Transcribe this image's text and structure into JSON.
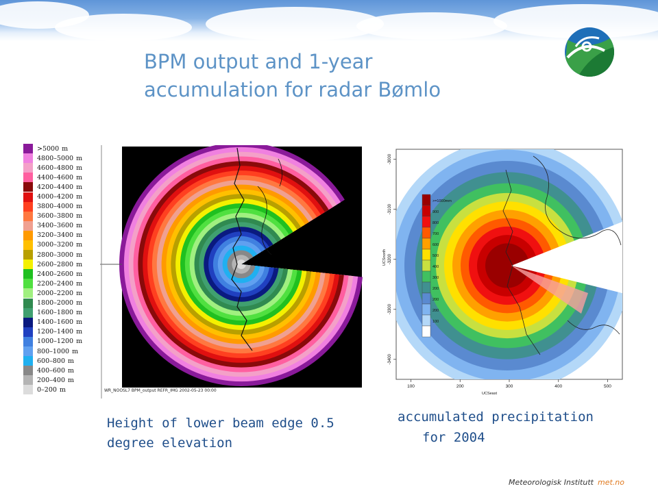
{
  "slide": {
    "title_line1": "BPM output and 1-year",
    "title_line2": "accumulation for radar Bømlo",
    "caption_left_line1": "Height of lower beam edge 0.5",
    "caption_left_line2": "degree elevation",
    "caption_right_line1": "accumulated precipitation",
    "caption_right_line2": "for 2004",
    "footer_org": "Meteorologisk Institutt",
    "footer_brand": "met.no"
  },
  "bpm_figure": {
    "image_caption": "WR_NOOSL7 BPM_output REFR_IMG 2002-05-23 00:00",
    "legend_unit": "m",
    "legend": [
      {
        "label": ">5000",
        "color": "#8a1a9a"
      },
      {
        "label": "4800–5000",
        "color": "#f080e0"
      },
      {
        "label": "4600–4800",
        "color": "#f4a0c8"
      },
      {
        "label": "4400–4600",
        "color": "#ff5fa0"
      },
      {
        "label": "4200–4400",
        "color": "#8a0a0a"
      },
      {
        "label": "4000–4200",
        "color": "#e01010"
      },
      {
        "label": "3800–4000",
        "color": "#ff4020"
      },
      {
        "label": "3600–3800",
        "color": "#ff7840"
      },
      {
        "label": "3400–3600",
        "color": "#f0a090"
      },
      {
        "label": "3200–3400",
        "color": "#ff9a00"
      },
      {
        "label": "3000–3200",
        "color": "#ffc000"
      },
      {
        "label": "2800–3000",
        "color": "#b8a000"
      },
      {
        "label": "2600–2800",
        "color": "#f4f000"
      },
      {
        "label": "2400–2600",
        "color": "#20c020"
      },
      {
        "label": "2200–2400",
        "color": "#50e040"
      },
      {
        "label": "2000–2200",
        "color": "#a0f080"
      },
      {
        "label": "1800–2000",
        "color": "#308a50"
      },
      {
        "label": "1600–1800",
        "color": "#40a070"
      },
      {
        "label": "1400–1600",
        "color": "#0a1a80"
      },
      {
        "label": "1200–1400",
        "color": "#2040c0"
      },
      {
        "label": "1000–1200",
        "color": "#4080e0"
      },
      {
        "label": "800–1000",
        "color": "#60a0f0"
      },
      {
        "label": "600–800",
        "color": "#20b0f0"
      },
      {
        "label": "400–600",
        "color": "#888888"
      },
      {
        "label": "200–400",
        "color": "#b4b4b4"
      },
      {
        "label": "0–200",
        "color": "#dcdcdc"
      }
    ]
  },
  "accumulation_figure": {
    "xlabel": "UCSeast",
    "ylabel": "UCSnorth",
    "x_ticks": [
      "100",
      "200",
      "300",
      "400",
      "500"
    ],
    "y_ticks": [
      "-3000",
      "-3100",
      "-3200",
      "-3300",
      "-3400"
    ],
    "colorbar": [
      {
        "label": ">=1000mm",
        "color": "#9a0000"
      },
      {
        "label": "900",
        "color": "#c80000"
      },
      {
        "label": "800",
        "color": "#f01010"
      },
      {
        "label": "700",
        "color": "#ff5a00"
      },
      {
        "label": "600",
        "color": "#ffa000"
      },
      {
        "label": "500",
        "color": "#ffe000"
      },
      {
        "label": "400",
        "color": "#c8e040"
      },
      {
        "label": "300",
        "color": "#40c060"
      },
      {
        "label": "200",
        "color": "#409090"
      },
      {
        "label": "200",
        "color": "#5a8ad0"
      },
      {
        "label": "200",
        "color": "#80b4f0"
      },
      {
        "label": "100",
        "color": "#b4d8f8"
      },
      {
        "label": "",
        "color": "#ffffff"
      }
    ]
  }
}
